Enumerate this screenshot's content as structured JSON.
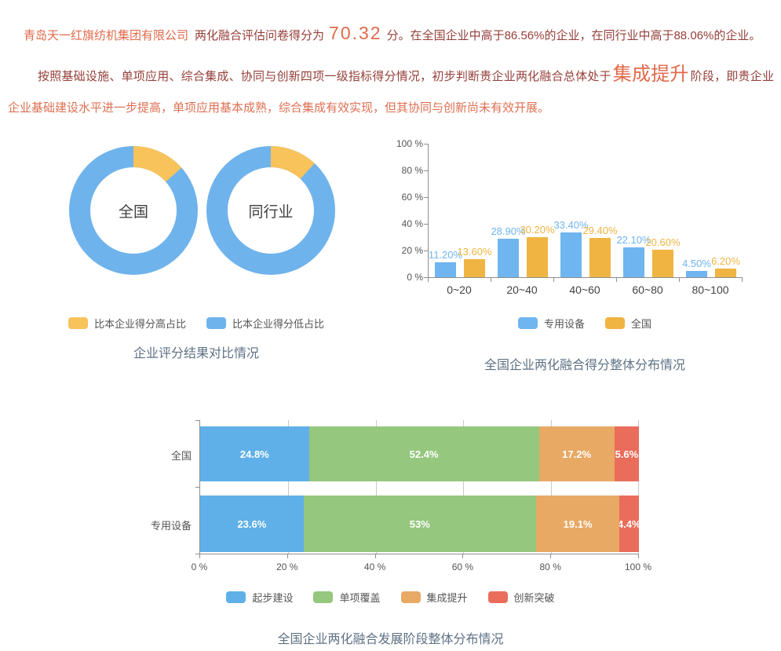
{
  "header": {
    "company": "青岛天一红旗纺机集团有限公司",
    "score_prefix": "两化融合评估问卷得分为",
    "score": "70.32",
    "score_suffix": "分。在全国企业中高于86.56%的企业，在同行业中高于88.06%的企业。"
  },
  "summary": {
    "part1": "按照基础设施、单项应用、综合集成、协同与创新四项一级指标得分情况，初步判断贵企业两化融合总体处于",
    "stage": "集成提升",
    "part2": "阶段，即贵企业",
    "part3": "企业基础建设水平进一步提高，单项应用基本成熟，综合集成有效实现，但其协同与创新尚未有效开展。"
  },
  "colors": {
    "accent_orange_red": "#E2694B",
    "text_dark_red": "#95403A",
    "text_light_red": "#DE7053",
    "title_gray_blue": "#5E7184",
    "blue": "#6FB3EC",
    "yellow": "#F8C35A",
    "bar_yellow": "#EFB441",
    "green": "#95C77E",
    "orange": "#E8A965",
    "red": "#EA6D5B"
  },
  "chart_data": [
    {
      "type": "pie",
      "subtype": "donut-pair",
      "title": "企业评分结果对比情况",
      "legend_position": "bottom",
      "legend": [
        {
          "label": "比本企业得分高占比",
          "color": "#F8C35A"
        },
        {
          "label": "比本企业得分低占比",
          "color": "#6FB3EC"
        }
      ],
      "donuts": [
        {
          "label": "全国",
          "higher_pct": 13.44,
          "lower_pct": 86.56
        },
        {
          "label": "同行业",
          "higher_pct": 11.94,
          "lower_pct": 88.06
        }
      ]
    },
    {
      "type": "bar",
      "title": "全国企业两化融合得分整体分布情况",
      "categories": [
        "0~20",
        "20~40",
        "40~60",
        "60~80",
        "80~100"
      ],
      "series": [
        {
          "name": "专用设备",
          "color": "#6FB5F0",
          "values": [
            11.2,
            28.9,
            33.4,
            22.1,
            4.5
          ],
          "labels": [
            "11.20%",
            "28.90%",
            "33.40%",
            "22.10%",
            "4.50%"
          ]
        },
        {
          "name": "全国",
          "color": "#EFB441",
          "values": [
            13.6,
            30.2,
            29.4,
            20.6,
            6.2
          ],
          "labels": [
            "13.60%",
            "30.20%",
            "29.40%",
            "20.60%",
            "6.20%"
          ]
        }
      ],
      "yticks": [
        "0 %",
        "20 %",
        "40 %",
        "60 %",
        "80 %",
        "100 %"
      ],
      "ylim": [
        0,
        100
      ],
      "grid": false,
      "legend_position": "bottom"
    },
    {
      "type": "bar",
      "subtype": "horizontal-stacked",
      "title": "全国企业两化融合发展阶段整体分布情况",
      "categories": [
        "全国",
        "专用设备"
      ],
      "series": [
        {
          "name": "起步建设",
          "color": "#5FB0E8",
          "values": [
            24.8,
            23.6
          ],
          "labels": [
            "24.8%",
            "23.6%"
          ]
        },
        {
          "name": "单项覆盖",
          "color": "#95C77E",
          "values": [
            52.4,
            53.0
          ],
          "labels": [
            "52.4%",
            "53%"
          ]
        },
        {
          "name": "集成提升",
          "color": "#E8A965",
          "values": [
            17.2,
            19.1
          ],
          "labels": [
            "17.2%",
            "19.1%"
          ]
        },
        {
          "name": "创新突破",
          "color": "#EA6D5B",
          "values": [
            5.6,
            4.4
          ],
          "labels": [
            "5.6%",
            "4.4%"
          ]
        }
      ],
      "xticks": [
        "0 %",
        "20 %",
        "40 %",
        "60 %",
        "80 %",
        "100 %"
      ],
      "xlim": [
        0,
        100
      ],
      "grid": true,
      "legend_position": "bottom"
    }
  ]
}
